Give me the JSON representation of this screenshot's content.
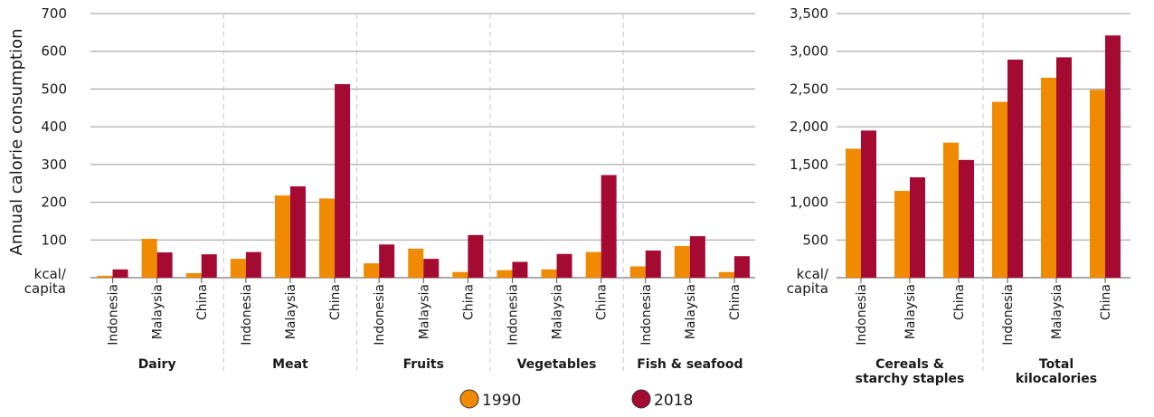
{
  "colors": {
    "c1990": "#f08a00",
    "c2018": "#a50a32",
    "grid": "#9a9a9a",
    "divider": "#c8c8c8"
  },
  "legend": [
    {
      "name": "1990",
      "color": "#f08a00"
    },
    {
      "name": "2018",
      "color": "#a50a32"
    }
  ],
  "chart_data": [
    {
      "type": "bar",
      "title": "",
      "ylabel": "Annual calorie consumption",
      "unit_label": [
        "kcal/",
        "capita"
      ],
      "ylim": [
        0,
        700
      ],
      "yticks": [
        100,
        200,
        300,
        400,
        500,
        600,
        700
      ],
      "ytick_labels": [
        "100",
        "200",
        "300",
        "400",
        "500",
        "600",
        "700"
      ],
      "groups": [
        {
          "label": [
            "Dairy"
          ],
          "categories": [
            "Indonesia",
            "Malaysia",
            "China"
          ]
        },
        {
          "label": [
            "Meat"
          ],
          "categories": [
            "Indonesia",
            "Malaysia",
            "China"
          ]
        },
        {
          "label": [
            "Fruits"
          ],
          "categories": [
            "Indonesia",
            "Malaysia",
            "China"
          ]
        },
        {
          "label": [
            "Vegetables"
          ],
          "categories": [
            "Indonesia",
            "Malaysia",
            "China"
          ]
        },
        {
          "label": [
            "Fish & seafood"
          ],
          "categories": [
            "Indonesia",
            "Malaysia",
            "China"
          ]
        }
      ],
      "series": [
        {
          "name": "1990",
          "values": [
            5,
            103,
            12,
            50,
            218,
            210,
            38,
            77,
            15,
            20,
            22,
            68,
            30,
            84,
            15
          ]
        },
        {
          "name": "2018",
          "values": [
            22,
            67,
            62,
            68,
            242,
            513,
            88,
            50,
            113,
            42,
            63,
            272,
            72,
            110,
            57
          ]
        }
      ]
    },
    {
      "type": "bar",
      "title": "",
      "ylabel": "",
      "unit_label": [
        "kcal/",
        "capita"
      ],
      "ylim": [
        0,
        3500
      ],
      "yticks": [
        500,
        1000,
        1500,
        2000,
        2500,
        3000,
        3500
      ],
      "ytick_labels": [
        "500",
        "1,000",
        "1,500",
        "2,000",
        "2,500",
        "3,000",
        "3,500"
      ],
      "groups": [
        {
          "label": [
            "Cereals &",
            "starchy staples"
          ],
          "categories": [
            "Indonesia",
            "Malaysia",
            "China"
          ]
        },
        {
          "label": [
            "Total",
            "kilocalories"
          ],
          "categories": [
            "Indonesia",
            "Malaysia",
            "China"
          ]
        }
      ],
      "series": [
        {
          "name": "1990",
          "values": [
            1710,
            1150,
            1790,
            2330,
            2650,
            2490
          ]
        },
        {
          "name": "2018",
          "values": [
            1950,
            1330,
            1560,
            2890,
            2920,
            3210
          ]
        }
      ]
    }
  ]
}
